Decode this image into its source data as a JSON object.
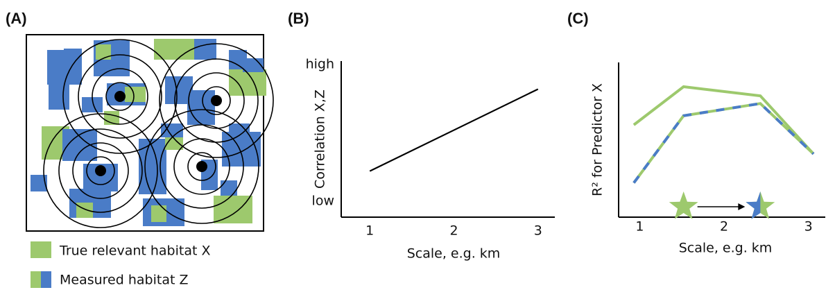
{
  "panel_a": {
    "label": "(A)",
    "legend": [
      "True relevant habitat X",
      "Measured habitat Z"
    ]
  },
  "chart_data": [
    {
      "type": "line",
      "label": "(B)",
      "x_label": "Scale, e.g. km",
      "y_label": "Correlation X,Z",
      "xlim": [
        0.66,
        3.2
      ],
      "xticks": [
        1,
        2,
        3
      ],
      "ylim": [
        0,
        1
      ],
      "yticks": [
        {
          "value": 0,
          "label": "low"
        },
        {
          "value": 1,
          "label": "high"
        }
      ],
      "series": [
        {
          "color": "#000000",
          "x": [
            1,
            3
          ],
          "values": [
            0.22,
            0.82
          ]
        }
      ]
    },
    {
      "type": "line",
      "label": "(C)",
      "x_label": "Scale, e.g. km",
      "y_label": "R² for Predictor X",
      "xlim": [
        0.75,
        3.2
      ],
      "xticks": [
        1,
        2,
        3
      ],
      "ylim": [
        0,
        1
      ],
      "series": [
        {
          "color": "#9dc96d",
          "x": [
            0.93,
            1.52,
            2.43,
            3.06
          ],
          "values": [
            0.6,
            0.85,
            0.79,
            0.41
          ]
        },
        {
          "color": "#9dc96d",
          "dash_color": "#4a7cc7",
          "x": [
            0.93,
            1.52,
            2.43,
            3.06
          ],
          "values": [
            0.22,
            0.66,
            0.74,
            0.41
          ]
        }
      ],
      "stars_x": [
        1.52,
        2.43
      ]
    }
  ]
}
